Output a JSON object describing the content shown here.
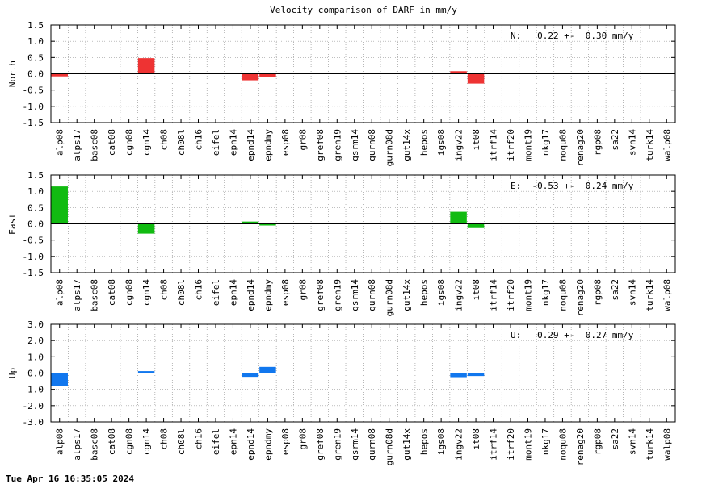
{
  "title": "Velocity comparison of DARF in mm/y",
  "timestamp": "Tue Apr 16 16:35:05 2024",
  "chart_data": {
    "type": "bar",
    "categories": [
      "alp08",
      "alps17",
      "basc08",
      "cat08",
      "cgn08",
      "cgn14",
      "ch08",
      "ch08l",
      "ch16",
      "eifel",
      "epn14",
      "epnd14",
      "epndmy",
      "esp08",
      "gr08",
      "gref08",
      "gren19",
      "gsrm14",
      "gurn08",
      "gurn08d",
      "gut14x",
      "hepos",
      "igs08",
      "ingv22",
      "it08",
      "itrf14",
      "itrf20",
      "mont19",
      "nkg17",
      "noqu08",
      "renag20",
      "rgp08",
      "sa22",
      "svn14",
      "turk14",
      "walp08"
    ],
    "panels": [
      {
        "ylabel": "North",
        "ylim": [
          -1.5,
          1.5
        ],
        "yticks": [
          "1.5",
          "1.0",
          "0.5",
          "0.0",
          "-0.5",
          "-1.0",
          "-1.5"
        ],
        "color": "#ee3333",
        "annotation": "N:   0.22 +-  0.30 mm/y",
        "values": [
          -0.08,
          null,
          null,
          null,
          null,
          0.48,
          null,
          null,
          null,
          null,
          null,
          -0.2,
          -0.1,
          null,
          null,
          null,
          null,
          null,
          null,
          null,
          null,
          null,
          null,
          0.08,
          -0.3,
          null,
          null,
          null,
          null,
          null,
          null,
          null,
          null,
          null,
          null,
          null
        ]
      },
      {
        "ylabel": "East",
        "ylim": [
          -1.5,
          1.5
        ],
        "yticks": [
          "1.5",
          "1.0",
          "0.5",
          "0.0",
          "-0.5",
          "-1.0",
          "-1.5"
        ],
        "color": "#11bb11",
        "annotation": "E:  -0.53 +-  0.24 mm/y",
        "values": [
          1.15,
          null,
          null,
          null,
          null,
          -0.3,
          null,
          null,
          null,
          null,
          null,
          0.07,
          -0.05,
          null,
          null,
          null,
          null,
          null,
          null,
          null,
          null,
          null,
          null,
          0.37,
          -0.13,
          null,
          null,
          null,
          null,
          null,
          null,
          null,
          null,
          null,
          null,
          null
        ]
      },
      {
        "ylabel": "Up",
        "ylim": [
          -3.0,
          3.0
        ],
        "yticks": [
          "3.0",
          "2.0",
          "1.0",
          "0.0",
          "-1.0",
          "-2.0",
          "-3.0"
        ],
        "color": "#1177ee",
        "annotation": "U:   0.29 +-  0.27 mm/y",
        "values": [
          -0.78,
          null,
          null,
          null,
          null,
          0.12,
          null,
          null,
          null,
          null,
          null,
          -0.23,
          0.38,
          null,
          null,
          null,
          null,
          null,
          null,
          null,
          null,
          null,
          null,
          -0.25,
          -0.18,
          null,
          null,
          null,
          null,
          null,
          null,
          null,
          null,
          null,
          null,
          null
        ]
      }
    ],
    "grid": true
  }
}
